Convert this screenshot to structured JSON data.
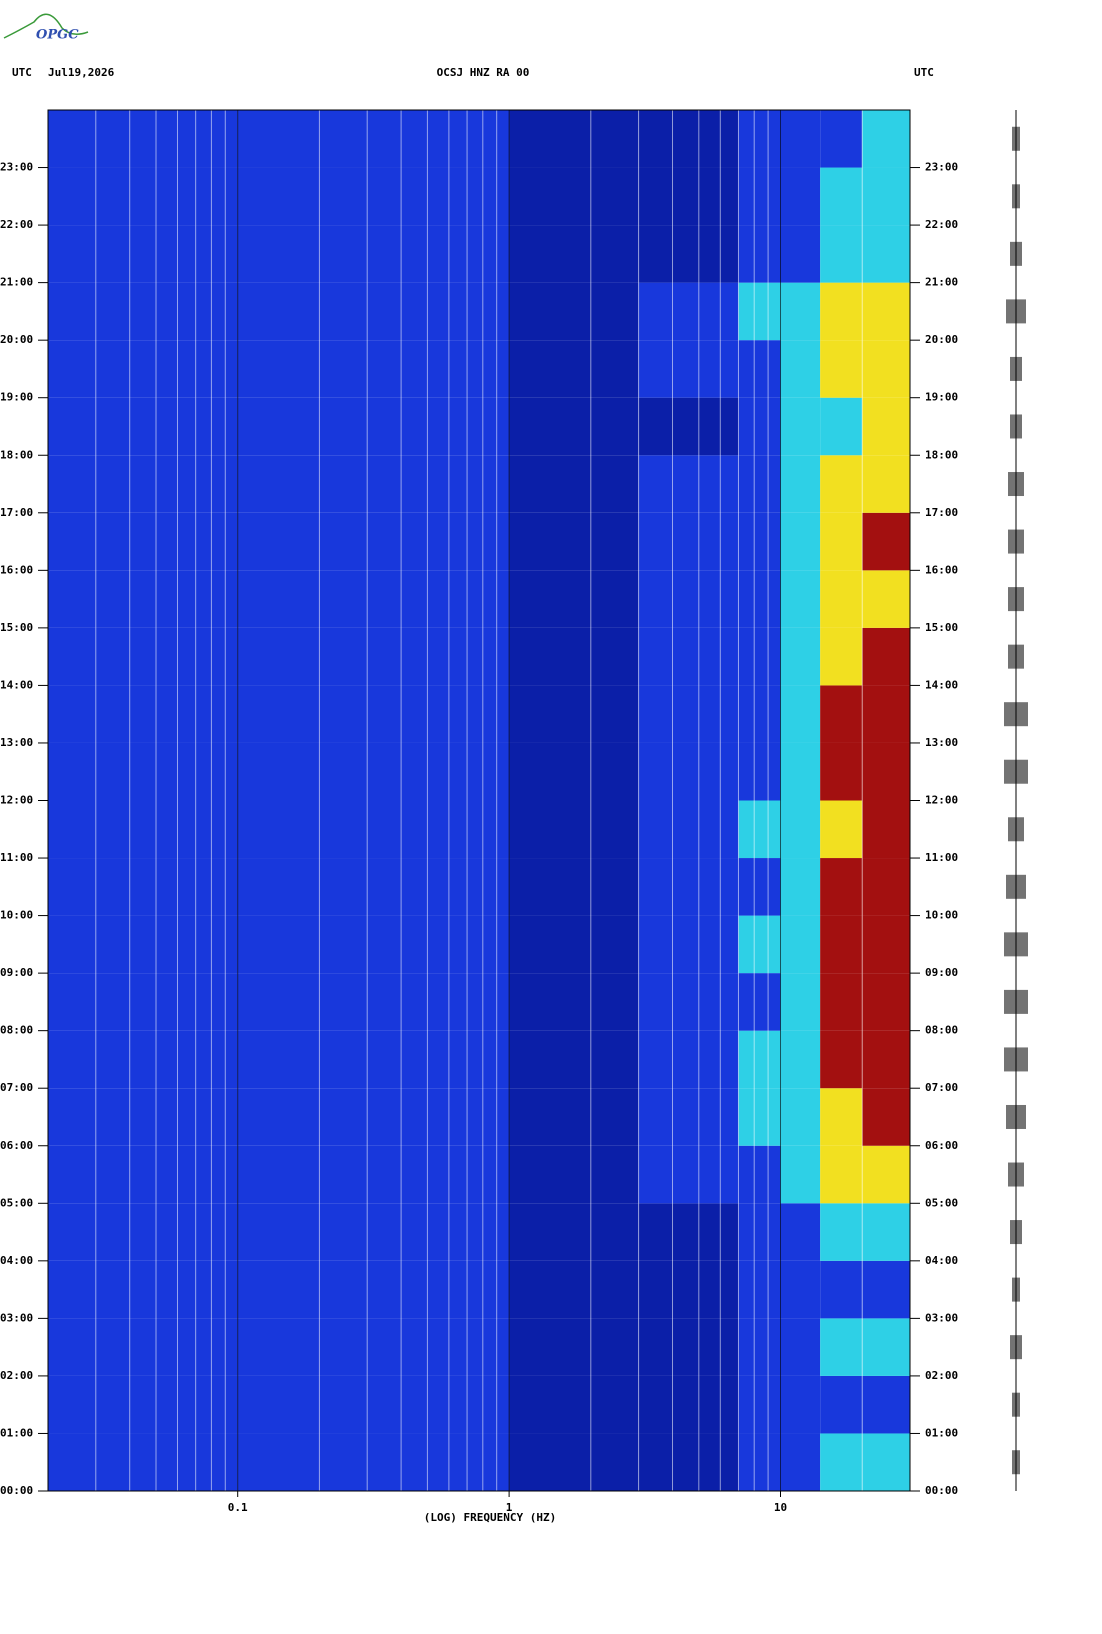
{
  "logo": "OPGC",
  "chart_data": {
    "type": "spectrogram",
    "header_left": "UTC",
    "date": "Jul19,2026",
    "title": "OCSJ HNZ RA 00",
    "header_right": "UTC",
    "xlabel": "(LOG) FREQUENCY (HZ)",
    "log_x": true,
    "xlim": [
      0.02,
      30
    ],
    "xticks": [
      {
        "value": 0.1,
        "label": "0.1"
      },
      1,
      10
    ],
    "xminor": [
      0.03,
      0.04,
      0.05,
      0.06,
      0.07,
      0.08,
      0.09,
      0.2,
      0.3,
      0.4,
      0.5,
      0.6,
      0.7,
      0.8,
      0.9,
      2,
      3,
      4,
      5,
      6,
      7,
      8,
      9,
      20
    ],
    "ylim": [
      0,
      24
    ],
    "yticks": [
      {
        "value": 0,
        "label": "00:00"
      },
      {
        "value": 1,
        "label": "01:00"
      },
      {
        "value": 2,
        "label": "02:00"
      },
      {
        "value": 3,
        "label": "03:00"
      },
      {
        "value": 4,
        "label": "04:00"
      },
      {
        "value": 5,
        "label": "05:00"
      },
      {
        "value": 6,
        "label": "06:00"
      },
      {
        "value": 7,
        "label": "07:00"
      },
      {
        "value": 8,
        "label": "08:00"
      },
      {
        "value": 9,
        "label": "09:00"
      },
      {
        "value": 10,
        "label": "10:00"
      },
      {
        "value": 11,
        "label": "11:00"
      },
      {
        "value": 12,
        "label": "12:00"
      },
      {
        "value": 13,
        "label": "13:00"
      },
      {
        "value": 14,
        "label": "14:00"
      },
      {
        "value": 15,
        "label": "15:00"
      },
      {
        "value": 16,
        "label": "16:00"
      },
      {
        "value": 17,
        "label": "17:00"
      },
      {
        "value": 18,
        "label": "18:00"
      },
      {
        "value": 19,
        "label": "19:00"
      },
      {
        "value": 20,
        "label": "20:00"
      },
      {
        "value": 21,
        "label": "21:00"
      },
      {
        "value": 22,
        "label": "22:00"
      },
      {
        "value": 23,
        "label": "23:00"
      }
    ],
    "freq_edges": [
      0.02,
      0.1,
      1,
      3,
      7,
      10,
      14,
      20,
      30
    ],
    "hour_edges": [
      0,
      1,
      2,
      3,
      4,
      5,
      6,
      7,
      8,
      9,
      10,
      11,
      12,
      13,
      14,
      15,
      16,
      17,
      18,
      19,
      20,
      21,
      22,
      23,
      24
    ],
    "colors": [
      "#0b1fa8",
      "#1838dc",
      "#2ed0e6",
      "#f2e020",
      "#a31010"
    ],
    "intensity": [
      [
        1,
        1,
        0,
        0,
        1,
        1,
        2,
        2
      ],
      [
        1,
        1,
        0,
        0,
        1,
        1,
        1,
        1
      ],
      [
        1,
        1,
        0,
        0,
        1,
        1,
        2,
        2
      ],
      [
        1,
        1,
        0,
        0,
        1,
        1,
        1,
        1
      ],
      [
        1,
        1,
        0,
        0,
        1,
        1,
        2,
        2
      ],
      [
        1,
        1,
        0,
        1,
        1,
        2,
        3,
        3
      ],
      [
        1,
        1,
        0,
        1,
        2,
        2,
        3,
        4
      ],
      [
        1,
        1,
        0,
        1,
        2,
        2,
        4,
        4
      ],
      [
        1,
        1,
        0,
        1,
        1,
        2,
        4,
        4
      ],
      [
        1,
        1,
        0,
        1,
        2,
        2,
        4,
        4
      ],
      [
        1,
        1,
        0,
        1,
        1,
        2,
        4,
        4
      ],
      [
        1,
        1,
        0,
        1,
        2,
        2,
        3,
        4
      ],
      [
        1,
        1,
        0,
        1,
        1,
        2,
        4,
        4
      ],
      [
        1,
        1,
        0,
        1,
        1,
        2,
        4,
        4
      ],
      [
        1,
        1,
        0,
        1,
        1,
        2,
        3,
        4
      ],
      [
        1,
        1,
        0,
        1,
        1,
        2,
        3,
        3
      ],
      [
        1,
        1,
        0,
        1,
        1,
        2,
        3,
        4
      ],
      [
        1,
        1,
        0,
        1,
        1,
        2,
        3,
        3
      ],
      [
        1,
        1,
        0,
        0,
        1,
        2,
        2,
        3
      ],
      [
        1,
        1,
        0,
        1,
        1,
        2,
        3,
        3
      ],
      [
        1,
        1,
        0,
        1,
        2,
        2,
        3,
        3
      ],
      [
        1,
        1,
        0,
        0,
        1,
        1,
        2,
        2
      ],
      [
        1,
        1,
        0,
        0,
        1,
        1,
        2,
        2
      ],
      [
        1,
        1,
        0,
        0,
        1,
        1,
        1,
        2
      ]
    ],
    "trace_amplitude": [
      2,
      2,
      3,
      2,
      3,
      4,
      5,
      6,
      6,
      6,
      5,
      4,
      6,
      6,
      4,
      4,
      4,
      4,
      3,
      3,
      5,
      3,
      2,
      2
    ]
  }
}
